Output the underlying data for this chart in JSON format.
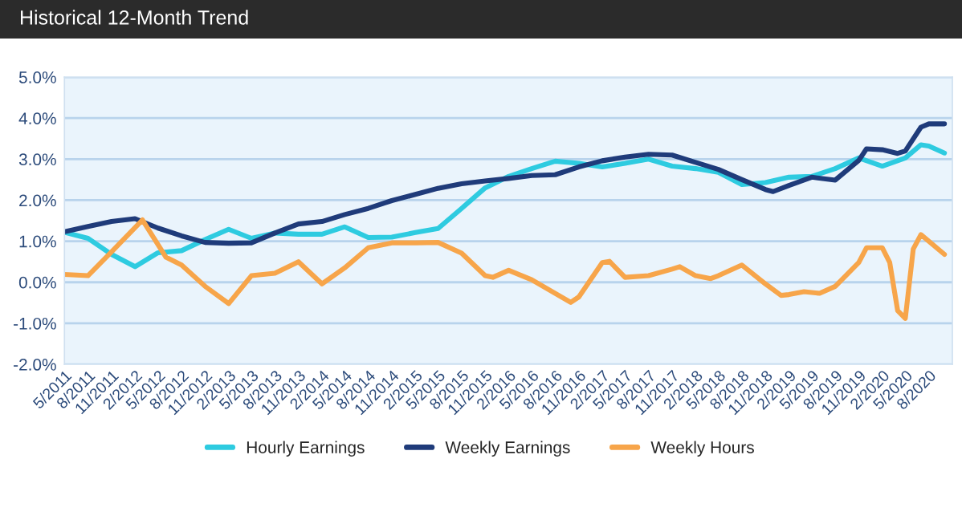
{
  "chart_data": {
    "type": "line",
    "title": "Historical 12-Month Trend",
    "ylim": [
      -2.0,
      5.0
    ],
    "yticks": [
      {
        "value": -2.0,
        "label": "-2.0%"
      },
      {
        "value": -1.0,
        "label": "-1.0%"
      },
      {
        "value": 0.0,
        "label": "0.0%"
      },
      {
        "value": 1.0,
        "label": "1.0%"
      },
      {
        "value": 2.0,
        "label": "2.0%"
      },
      {
        "value": 3.0,
        "label": "3.0%"
      },
      {
        "value": 4.0,
        "label": "4.0%"
      },
      {
        "value": 5.0,
        "label": "5.0%"
      }
    ],
    "xlim": [
      "2011-05",
      "2020-11"
    ],
    "xticks": [
      {
        "value": "2011-05",
        "label": "5/2011"
      },
      {
        "value": "2011-08",
        "label": "8/2011"
      },
      {
        "value": "2011-11",
        "label": "11/2011"
      },
      {
        "value": "2012-02",
        "label": "2/2012"
      },
      {
        "value": "2012-05",
        "label": "5/2012"
      },
      {
        "value": "2012-08",
        "label": "8/2012"
      },
      {
        "value": "2012-11",
        "label": "11/2012"
      },
      {
        "value": "2013-02",
        "label": "2/2013"
      },
      {
        "value": "2013-05",
        "label": "5/2013"
      },
      {
        "value": "2013-08",
        "label": "8/2013"
      },
      {
        "value": "2013-11",
        "label": "11/2013"
      },
      {
        "value": "2014-02",
        "label": "2/2014"
      },
      {
        "value": "2014-05",
        "label": "5/2014"
      },
      {
        "value": "2014-08",
        "label": "8/2014"
      },
      {
        "value": "2014-11",
        "label": "11/2014"
      },
      {
        "value": "2015-02",
        "label": "2/2015"
      },
      {
        "value": "2015-05",
        "label": "5/2015"
      },
      {
        "value": "2015-08",
        "label": "8/2015"
      },
      {
        "value": "2015-11",
        "label": "11/2015"
      },
      {
        "value": "2016-02",
        "label": "2/2016"
      },
      {
        "value": "2016-05",
        "label": "5/2016"
      },
      {
        "value": "2016-08",
        "label": "8/2016"
      },
      {
        "value": "2016-11",
        "label": "11/2016"
      },
      {
        "value": "2017-02",
        "label": "2/2017"
      },
      {
        "value": "2017-05",
        "label": "5/2017"
      },
      {
        "value": "2017-08",
        "label": "8/2017"
      },
      {
        "value": "2017-11",
        "label": "11/2017"
      },
      {
        "value": "2018-02",
        "label": "2/2018"
      },
      {
        "value": "2018-05",
        "label": "5/2018"
      },
      {
        "value": "2018-08",
        "label": "8/2018"
      },
      {
        "value": "2018-11",
        "label": "11/2018"
      },
      {
        "value": "2019-02",
        "label": "2/2019"
      },
      {
        "value": "2019-05",
        "label": "5/2019"
      },
      {
        "value": "2019-08",
        "label": "8/2019"
      },
      {
        "value": "2019-11",
        "label": "11/2019"
      },
      {
        "value": "2020-02",
        "label": "2/2020"
      },
      {
        "value": "2020-05",
        "label": "5/2020"
      },
      {
        "value": "2020-08",
        "label": "8/2020"
      }
    ],
    "grid": "y",
    "legend": "bottom",
    "series": [
      {
        "name": "Hourly Earnings",
        "color": "#2ecbe0",
        "x": [
          "2011-05",
          "2011-08",
          "2011-11",
          "2012-02",
          "2012-05",
          "2012-08",
          "2012-11",
          "2013-02",
          "2013-05",
          "2013-08",
          "2013-11",
          "2014-02",
          "2014-05",
          "2014-08",
          "2014-11",
          "2015-02",
          "2015-05",
          "2015-08",
          "2015-11",
          "2016-02",
          "2016-05",
          "2016-08",
          "2016-11",
          "2017-02",
          "2017-05",
          "2017-08",
          "2017-11",
          "2018-02",
          "2018-05",
          "2018-08",
          "2018-11",
          "2019-02",
          "2019-05",
          "2019-08",
          "2019-11",
          "2020-02",
          "2020-05",
          "2020-07",
          "2020-08",
          "2020-10"
        ],
        "values": [
          1.22,
          1.07,
          0.68,
          0.38,
          0.72,
          0.77,
          1.04,
          1.29,
          1.07,
          1.2,
          1.17,
          1.17,
          1.35,
          1.09,
          1.1,
          1.21,
          1.31,
          1.8,
          2.3,
          2.58,
          2.77,
          2.95,
          2.9,
          2.81,
          2.9,
          3.0,
          2.83,
          2.77,
          2.68,
          2.38,
          2.43,
          2.56,
          2.58,
          2.77,
          3.03,
          2.83,
          3.03,
          3.35,
          3.32,
          3.15
        ]
      },
      {
        "name": "Weekly Earnings",
        "color": "#1f3b7a",
        "x": [
          "2011-05",
          "2011-08",
          "2011-11",
          "2012-02",
          "2012-05",
          "2012-08",
          "2012-11",
          "2013-02",
          "2013-05",
          "2013-08",
          "2013-11",
          "2014-02",
          "2014-05",
          "2014-08",
          "2014-11",
          "2015-02",
          "2015-05",
          "2015-08",
          "2015-11",
          "2016-02",
          "2016-05",
          "2016-08",
          "2016-11",
          "2017-02",
          "2017-05",
          "2017-08",
          "2017-11",
          "2018-02",
          "2018-05",
          "2018-08",
          "2018-11",
          "2018-12",
          "2019-02",
          "2019-05",
          "2019-08",
          "2019-11",
          "2019-12",
          "2020-02",
          "2020-04",
          "2020-05",
          "2020-07",
          "2020-08",
          "2020-10"
        ],
        "values": [
          1.23,
          1.36,
          1.48,
          1.55,
          1.32,
          1.13,
          0.97,
          0.95,
          0.96,
          1.2,
          1.42,
          1.48,
          1.65,
          1.8,
          1.99,
          2.14,
          2.29,
          2.4,
          2.47,
          2.53,
          2.6,
          2.62,
          2.81,
          2.96,
          3.05,
          3.12,
          3.1,
          2.92,
          2.75,
          2.5,
          2.26,
          2.21,
          2.36,
          2.56,
          2.49,
          2.97,
          3.25,
          3.23,
          3.14,
          3.2,
          3.78,
          3.86,
          3.86
        ]
      },
      {
        "name": "Weekly Hours",
        "color": "#f7a54a",
        "x": [
          "2011-05",
          "2011-08",
          "2011-11",
          "2012-03",
          "2012-06",
          "2012-08",
          "2012-11",
          "2013-02",
          "2013-05",
          "2013-08",
          "2013-11",
          "2014-02",
          "2014-05",
          "2014-08",
          "2014-11",
          "2015-02",
          "2015-05",
          "2015-08",
          "2015-11",
          "2015-12",
          "2016-02",
          "2016-05",
          "2016-08",
          "2016-10",
          "2016-11",
          "2017-02",
          "2017-03",
          "2017-05",
          "2017-08",
          "2017-11",
          "2017-12",
          "2018-02",
          "2018-04",
          "2018-05",
          "2018-08",
          "2018-11",
          "2019-01",
          "2019-02",
          "2019-04",
          "2019-06",
          "2019-08",
          "2019-11",
          "2019-12",
          "2020-02",
          "2020-03",
          "2020-04",
          "2020-05",
          "2020-06",
          "2020-07",
          "2020-10"
        ],
        "values": [
          0.19,
          0.16,
          0.74,
          1.52,
          0.61,
          0.42,
          -0.1,
          -0.52,
          0.16,
          0.22,
          0.5,
          -0.04,
          0.35,
          0.84,
          0.96,
          0.96,
          0.97,
          0.71,
          0.16,
          0.12,
          0.29,
          0.06,
          -0.27,
          -0.49,
          -0.36,
          0.48,
          0.51,
          0.12,
          0.16,
          0.32,
          0.38,
          0.16,
          0.09,
          0.16,
          0.42,
          -0.04,
          -0.32,
          -0.3,
          -0.23,
          -0.27,
          -0.1,
          0.48,
          0.84,
          0.84,
          0.48,
          -0.69,
          -0.88,
          0.81,
          1.16,
          0.68
        ]
      }
    ]
  }
}
